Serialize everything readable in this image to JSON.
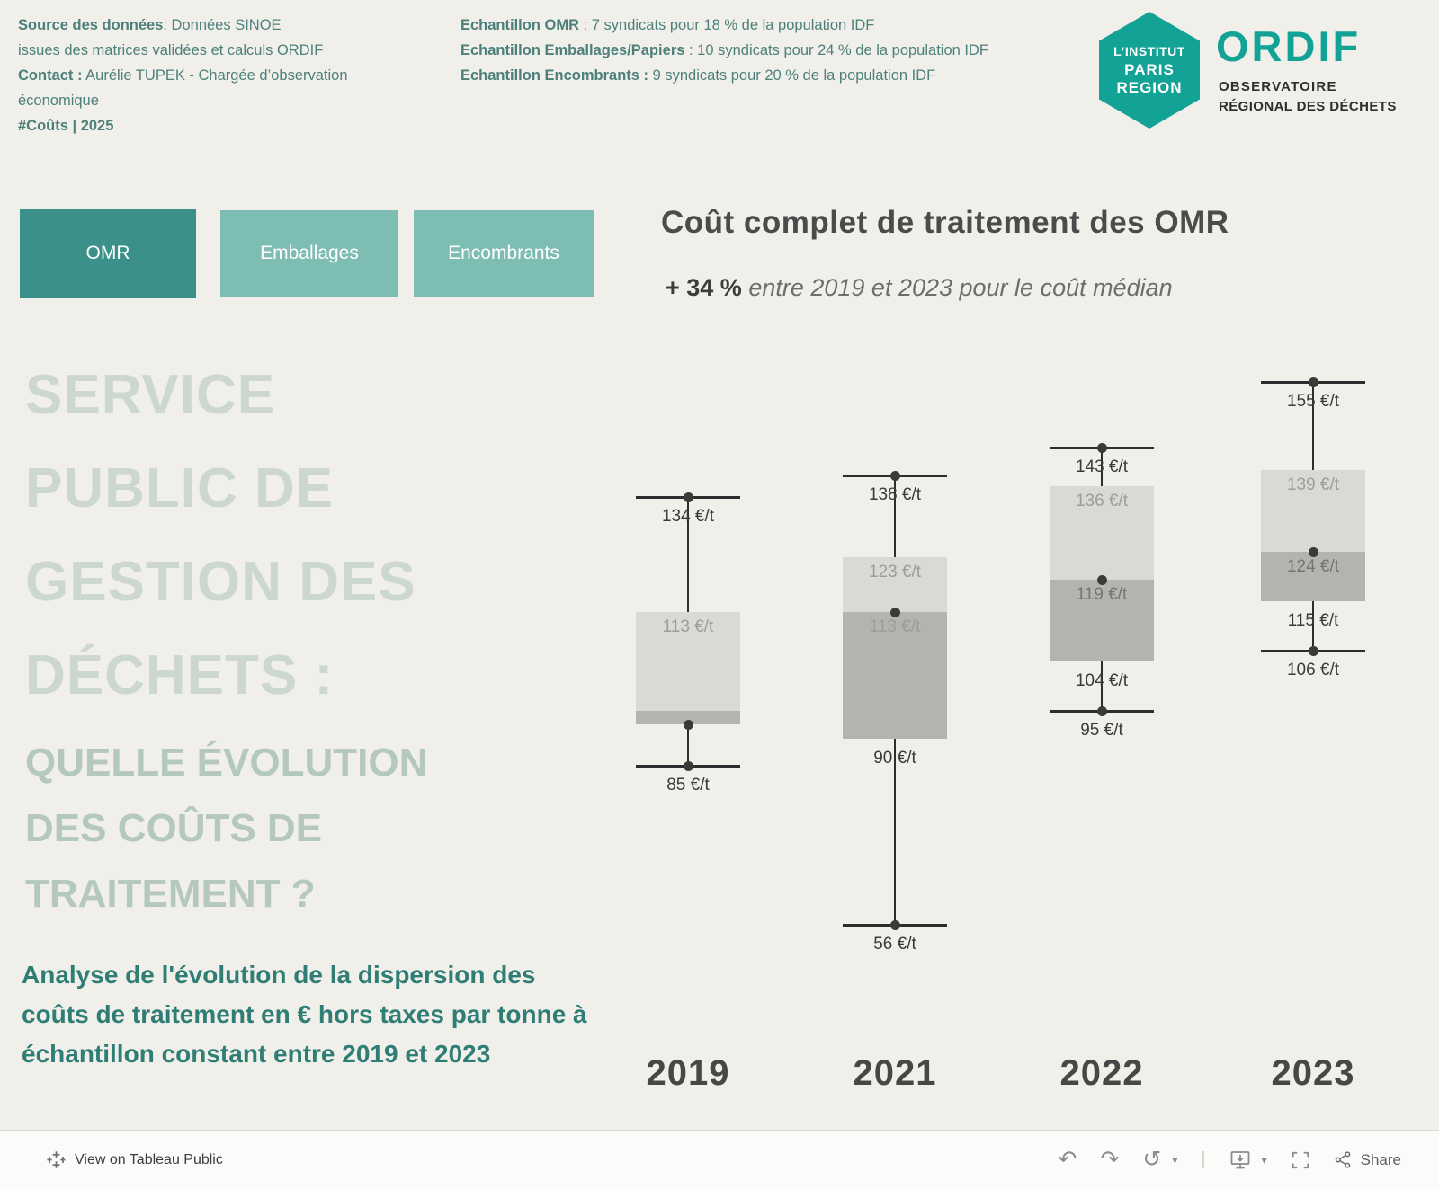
{
  "header": {
    "source_bold": "Source des données",
    "source_text": ": Données SINOE",
    "source_line2": "issues des matrices validées et calculs ORDIF",
    "contact_bold": "Contact :",
    "contact_text": " Aurélie TUPEK - Chargée d’observation",
    "contact_line2": "économique",
    "tag": "#Coûts | 2025",
    "samples": [
      {
        "bold": "Echantillon OMR",
        "text": " : 7 syndicats pour 18 % de la population IDF"
      },
      {
        "bold": "Echantillon Emballages/Papiers",
        "text": " : 10 syndicats pour 24 % de la population IDF"
      },
      {
        "bold": "Echantillon Encombrants :",
        "text": " 9 syndicats pour 20 % de la population IDF"
      }
    ]
  },
  "logo": {
    "hex_line1": "L’INSTITUT",
    "hex_line2": "PARIS",
    "hex_line3": "REGION",
    "name": "ORDIF",
    "sub1": "OBSERVATOIRE",
    "sub2": "RÉGIONAL DES DÉCHETS"
  },
  "tabs": [
    {
      "label": "OMR",
      "active": true
    },
    {
      "label": "Emballages",
      "active": false
    },
    {
      "label": "Encombrants",
      "active": false
    }
  ],
  "main": {
    "title": "Coût complet de traitement des OMR",
    "subtitle_bold": "+ 34 %",
    "subtitle_rest": " entre 2019 et 2023 pour le coût médian"
  },
  "headline": {
    "lines_light": [
      "SERVICE",
      "PUBLIC DE",
      "GESTION DES",
      "DÉCHETS :"
    ],
    "lines_medium": [
      "QUELLE ÉVOLUTION",
      "DES COÛTS DE",
      "TRAITEMENT ?"
    ],
    "description": "Analyse de l'évolution de la dispersion des coûts de traitement en € hors taxes par tonne à échantillon constant entre 2019 et 2023"
  },
  "chart_data": {
    "type": "boxplot",
    "title": "Coût complet de traitement des OMR",
    "unit": "€/t",
    "annotation": "+ 34 % entre 2019 et 2023 pour le coût médian",
    "categories": [
      "2019",
      "2021",
      "2022",
      "2023"
    ],
    "ylim": [
      50,
      165
    ],
    "grid": false,
    "legend": false,
    "series": [
      {
        "year": "2019",
        "whisker_top": 134,
        "box_top": 113,
        "box_split": 95,
        "box_bottom": 92.5,
        "median": 92.5,
        "whisker_bottom": 85,
        "labels": [
          {
            "text": "134 €/t",
            "value": 134,
            "placement": "below",
            "tone": "dark"
          },
          {
            "text": "113 €/t",
            "value": 113,
            "placement": "inside",
            "tone": "muted"
          },
          {
            "text": "85 €/t",
            "value": 85,
            "placement": "below",
            "tone": "dark"
          }
        ]
      },
      {
        "year": "2021",
        "whisker_top": 138,
        "box_top": 123,
        "box_split": 113,
        "box_bottom": 90,
        "median": 113,
        "whisker_bottom": 56,
        "labels": [
          {
            "text": "138 €/t",
            "value": 138,
            "placement": "below",
            "tone": "dark"
          },
          {
            "text": "123 €/t",
            "value": 123,
            "placement": "inside",
            "tone": "muted"
          },
          {
            "text": "113 €/t",
            "value": 113,
            "placement": "inside",
            "tone": "muted"
          },
          {
            "text": "90 €/t",
            "value": 90,
            "placement": "below",
            "tone": "dark"
          },
          {
            "text": "56 €/t",
            "value": 56,
            "placement": "below",
            "tone": "dark"
          }
        ]
      },
      {
        "year": "2022",
        "whisker_top": 143,
        "box_top": 136,
        "box_split": 119,
        "box_bottom": 104,
        "median": 119,
        "whisker_bottom": 95,
        "labels": [
          {
            "text": "143 €/t",
            "value": 143,
            "placement": "below",
            "tone": "dark"
          },
          {
            "text": "136 €/t",
            "value": 136,
            "placement": "inside",
            "tone": "muted"
          },
          {
            "text": "119 €/t",
            "value": 119,
            "placement": "inside",
            "tone": "mid"
          },
          {
            "text": "104 €/t",
            "value": 104,
            "placement": "below",
            "tone": "dark"
          },
          {
            "text": "95 €/t",
            "value": 95,
            "placement": "below",
            "tone": "dark"
          }
        ]
      },
      {
        "year": "2023",
        "whisker_top": 155,
        "box_top": 139,
        "box_split": 124,
        "box_bottom": 115,
        "median": 124,
        "whisker_bottom": 106,
        "labels": [
          {
            "text": "155 €/t",
            "value": 155,
            "placement": "below",
            "tone": "dark"
          },
          {
            "text": "139 €/t",
            "value": 139,
            "placement": "inside",
            "tone": "muted"
          },
          {
            "text": "124 €/t",
            "value": 124,
            "placement": "inside",
            "tone": "mid"
          },
          {
            "text": "115 €/t",
            "value": 115,
            "placement": "below",
            "tone": "dark"
          },
          {
            "text": "106 €/t",
            "value": 106,
            "placement": "below",
            "tone": "dark"
          }
        ]
      }
    ]
  },
  "footer": {
    "view_text": "View on Tableau Public",
    "share_label": "Share",
    "icons": {
      "undo": "↶",
      "redo": "↷",
      "reset": "↺",
      "caret": "▾",
      "separator": "|"
    }
  },
  "colors": {
    "background": "#f0efea",
    "tab_active": "#3b9189",
    "tab_inactive": "#7ebdb4",
    "brand_teal": "#12a296",
    "header_text": "#4d807b",
    "headline_light": "#ccd7cd",
    "headline_medium": "#b5c8c0",
    "description_teal": "#2e7e76",
    "box_light": "#d9d9d6",
    "box_dark": "#b3b3b0",
    "label_dark": "#3a3a3a",
    "label_muted": "#9c9c9c"
  }
}
